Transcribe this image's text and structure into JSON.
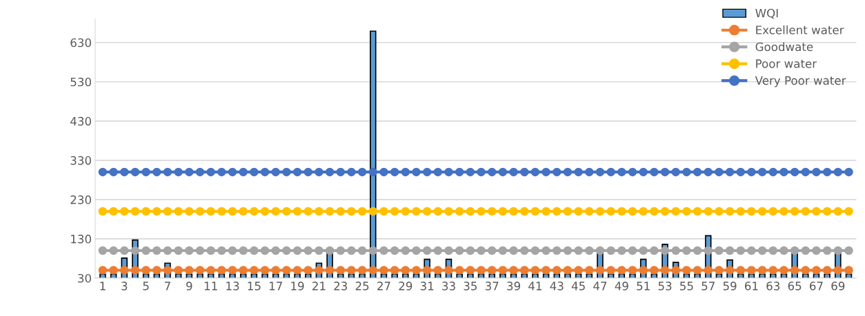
{
  "chart_data": {
    "type": "bar",
    "categories": [
      "1",
      null,
      "3",
      null,
      "5",
      null,
      "7",
      null,
      "9",
      null,
      "11",
      null,
      "13",
      null,
      "15",
      null,
      "17",
      null,
      "19",
      null,
      "21",
      null,
      "23",
      null,
      "25",
      null,
      "27",
      null,
      "29",
      null,
      "31",
      null,
      "33",
      null,
      "35",
      null,
      "37",
      null,
      "39",
      null,
      "41",
      null,
      "43",
      null,
      "45",
      null,
      "47",
      null,
      "49",
      null,
      "51",
      null,
      "53",
      null,
      "55",
      null,
      "57",
      null,
      "59",
      null,
      "61",
      null,
      "63",
      null,
      "65",
      null,
      "67",
      null,
      "69",
      null
    ],
    "series": [
      {
        "name": "WQI",
        "color": "#5b9bd5",
        "values": [
          40,
          40,
          81,
          127,
          40,
          40,
          68,
          40,
          40,
          40,
          40,
          40,
          40,
          40,
          40,
          40,
          40,
          40,
          40,
          40,
          68,
          97,
          40,
          40,
          40,
          659,
          40,
          40,
          40,
          40,
          78,
          40,
          78,
          40,
          40,
          40,
          40,
          40,
          40,
          40,
          40,
          40,
          40,
          40,
          40,
          40,
          94,
          40,
          40,
          40,
          78,
          40,
          116,
          70,
          40,
          40,
          138,
          40,
          76,
          40,
          40,
          40,
          40,
          40,
          95,
          40,
          40,
          40,
          95,
          40
        ]
      },
      {
        "name": "Excellent water",
        "type": "line",
        "color": "#ed7d31",
        "values": [
          50,
          50,
          50,
          50,
          50,
          50,
          50,
          50,
          50,
          50,
          50,
          50,
          50,
          50,
          50,
          50,
          50,
          50,
          50,
          50,
          50,
          50,
          50,
          50,
          50,
          50,
          50,
          50,
          50,
          50,
          50,
          50,
          50,
          50,
          50,
          50,
          50,
          50,
          50,
          50,
          50,
          50,
          50,
          50,
          50,
          50,
          50,
          50,
          50,
          50,
          50,
          50,
          50,
          50,
          50,
          50,
          50,
          50,
          50,
          50,
          50,
          50,
          50,
          50,
          50,
          50,
          50,
          50,
          50,
          50
        ]
      },
      {
        "name": "Goodwate",
        "type": "line",
        "color": "#a5a5a5",
        "values": [
          100,
          100,
          100,
          100,
          100,
          100,
          100,
          100,
          100,
          100,
          100,
          100,
          100,
          100,
          100,
          100,
          100,
          100,
          100,
          100,
          100,
          100,
          100,
          100,
          100,
          100,
          100,
          100,
          100,
          100,
          100,
          100,
          100,
          100,
          100,
          100,
          100,
          100,
          100,
          100,
          100,
          100,
          100,
          100,
          100,
          100,
          100,
          100,
          100,
          100,
          100,
          100,
          100,
          100,
          100,
          100,
          100,
          100,
          100,
          100,
          100,
          100,
          100,
          100,
          100,
          100,
          100,
          100,
          100,
          100
        ]
      },
      {
        "name": "Poor water",
        "type": "line",
        "color": "#ffc000",
        "values": [
          200,
          200,
          200,
          200,
          200,
          200,
          200,
          200,
          200,
          200,
          200,
          200,
          200,
          200,
          200,
          200,
          200,
          200,
          200,
          200,
          200,
          200,
          200,
          200,
          200,
          200,
          200,
          200,
          200,
          200,
          200,
          200,
          200,
          200,
          200,
          200,
          200,
          200,
          200,
          200,
          200,
          200,
          200,
          200,
          200,
          200,
          200,
          200,
          200,
          200,
          200,
          200,
          200,
          200,
          200,
          200,
          200,
          200,
          200,
          200,
          200,
          200,
          200,
          200,
          200,
          200,
          200,
          200,
          200,
          200
        ]
      },
      {
        "name": "Very Poor water",
        "type": "line",
        "color": "#4472c4",
        "values": [
          300,
          300,
          300,
          300,
          300,
          300,
          300,
          300,
          300,
          300,
          300,
          300,
          300,
          300,
          300,
          300,
          300,
          300,
          300,
          300,
          300,
          300,
          300,
          300,
          300,
          300,
          300,
          300,
          300,
          300,
          300,
          300,
          300,
          300,
          300,
          300,
          300,
          300,
          300,
          300,
          300,
          300,
          300,
          300,
          300,
          300,
          300,
          300,
          300,
          300,
          300,
          300,
          300,
          300,
          300,
          300,
          300,
          300,
          300,
          300,
          300,
          300,
          300,
          300,
          300,
          300,
          300,
          300,
          300,
          300
        ]
      }
    ],
    "ylim": [
      30,
      690
    ],
    "yticks": [
      30,
      130,
      230,
      330,
      430,
      530,
      630
    ],
    "grid": "y",
    "legend": "top right",
    "marker": "circle",
    "line_style": "solid"
  }
}
